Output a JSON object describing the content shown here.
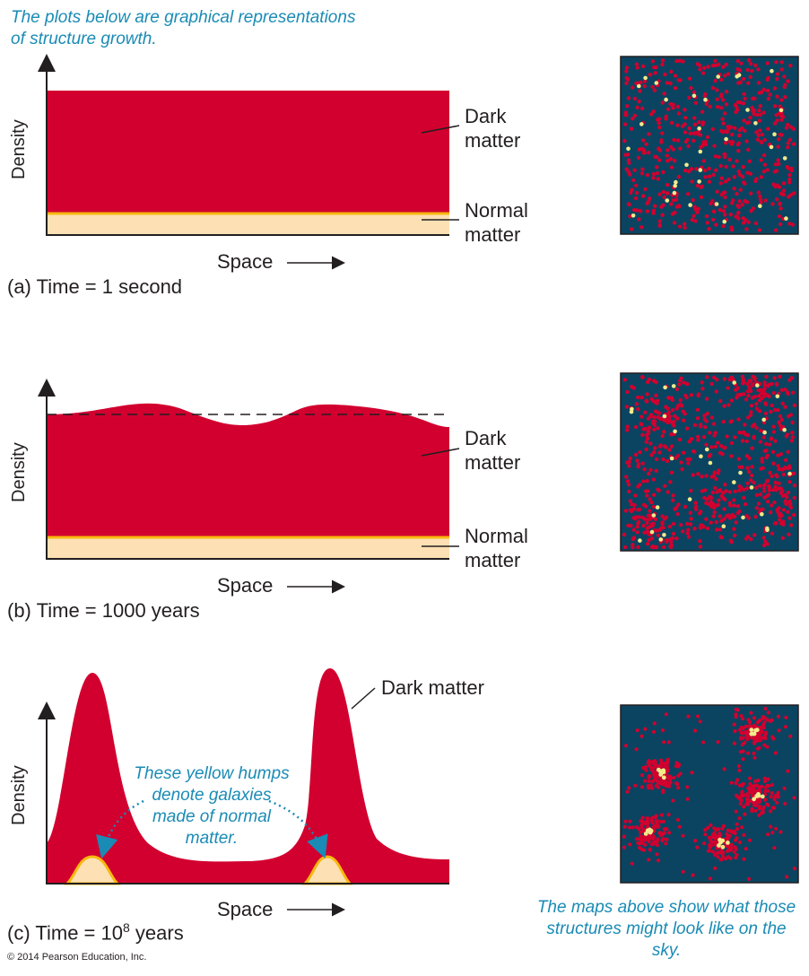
{
  "intro_note": [
    "The plots below are graphical representations",
    "of structure growth."
  ],
  "maps_note": [
    "The maps above show what those",
    "structures might look like on the sky."
  ],
  "copyright": "© 2014 Pearson Education, Inc.",
  "panels": [
    {
      "ylabel": "Density",
      "xlabel": "Space",
      "caption": "(a) Time = 1 second",
      "dark_label": [
        "Dark",
        "matter"
      ],
      "normal_label": [
        "Normal",
        "matter"
      ]
    },
    {
      "ylabel": "Density",
      "xlabel": "Space",
      "caption": "(b) Time = 1000 years",
      "dark_label": [
        "Dark",
        "matter"
      ],
      "normal_label": [
        "Normal",
        "matter"
      ]
    },
    {
      "ylabel": "Density",
      "xlabel": "Space",
      "caption_prefix": "(c) Time = 10",
      "caption_exp": "8",
      "caption_suffix": " years",
      "dark_label": "Dark matter",
      "humps_note": [
        "These yellow humps",
        "denote galaxies",
        "made of normal",
        "matter."
      ]
    }
  ],
  "colors": {
    "dark_matter": "#d2002f",
    "normal_matter": "#fde0b3",
    "normal_edge": "#f7b80e",
    "map_bg": "#0b4461",
    "note": "#1a8bb5"
  }
}
